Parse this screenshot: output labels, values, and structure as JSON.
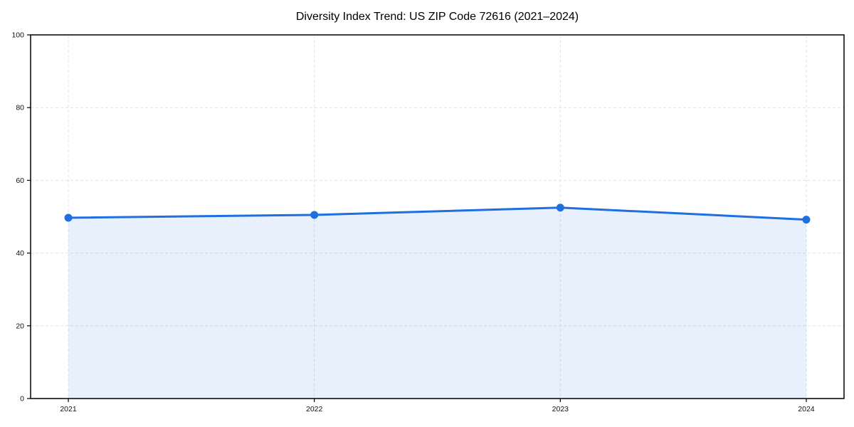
{
  "chart_data": {
    "type": "area",
    "title": "Diversity Index Trend: US ZIP Code 72616 (2021–2024)",
    "categories": [
      "2021",
      "2022",
      "2023",
      "2024"
    ],
    "series": [
      {
        "name": "Diversity Index",
        "values": [
          49.7,
          50.5,
          52.5,
          49.2
        ]
      }
    ],
    "xlabel": "",
    "ylabel": "",
    "ylim": [
      0,
      100
    ],
    "yticks": [
      0,
      20,
      40,
      60,
      80,
      100
    ],
    "grid": true,
    "grid_style": "dashed",
    "legend_position": "none",
    "marker": "circle",
    "fill_opacity": 0.1,
    "colors": {
      "line": "#1f6fe0",
      "marker": "#1f6fe0",
      "fill": "#1f6fe0",
      "grid": "#e2e2e2",
      "frame": "#000000",
      "tick_label": "#111111",
      "title": "#000000",
      "background": "#ffffff"
    }
  }
}
